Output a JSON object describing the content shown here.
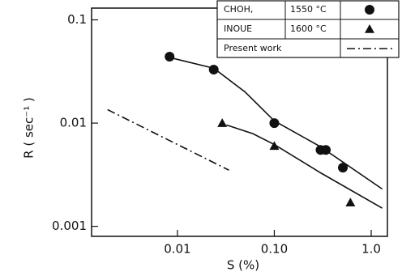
{
  "chart_data": {
    "type": "scatter",
    "x_label": "S (%)",
    "y_label": "R ( sec⁻¹ )",
    "log_x": true,
    "log_y": true,
    "xlim": [
      0.0013,
      1.47
    ],
    "ylim": [
      0.0008,
      0.13
    ],
    "xticks": [
      {
        "value": 0.01,
        "label": "0.01"
      },
      {
        "value": 0.1,
        "label": "0.10"
      },
      {
        "value": 1,
        "label": "1.0"
      }
    ],
    "yticks": [
      0.1,
      0.01,
      0.001
    ],
    "legend": "upper right",
    "series": [
      {
        "name": "CHOH,",
        "temperature": "1550 °C",
        "marker": "circle",
        "color": "#111111",
        "x": [
          0.0083,
          0.0237,
          0.1,
          0.3,
          0.34,
          0.51
        ],
        "values": [
          0.044,
          0.033,
          0.01,
          0.0055,
          0.0055,
          0.0037
        ]
      },
      {
        "name": "INOUE",
        "temperature": "1600 °C",
        "marker": "triangle",
        "color": "#111111",
        "x": [
          0.029,
          0.1,
          0.61
        ],
        "values": [
          0.01,
          0.006,
          0.0017
        ]
      },
      {
        "name": "Present work",
        "marker": "dashdot",
        "color": "#111111",
        "x": [
          0.0019,
          0.034
        ],
        "values": [
          0.0135,
          0.0035
        ]
      },
      {
        "marker": "solid",
        "color": "#111111",
        "x": [
          0.0085,
          0.0237,
          0.05,
          0.1,
          0.3,
          1.3
        ],
        "values": [
          0.043,
          0.034,
          0.02,
          0.0105,
          0.0059,
          0.0023
        ]
      },
      {
        "marker": "solid",
        "color": "#111111",
        "x": [
          0.032,
          0.06,
          0.1,
          0.3,
          1.3
        ],
        "values": [
          0.0096,
          0.0079,
          0.0062,
          0.0033,
          0.0015
        ]
      }
    ]
  }
}
